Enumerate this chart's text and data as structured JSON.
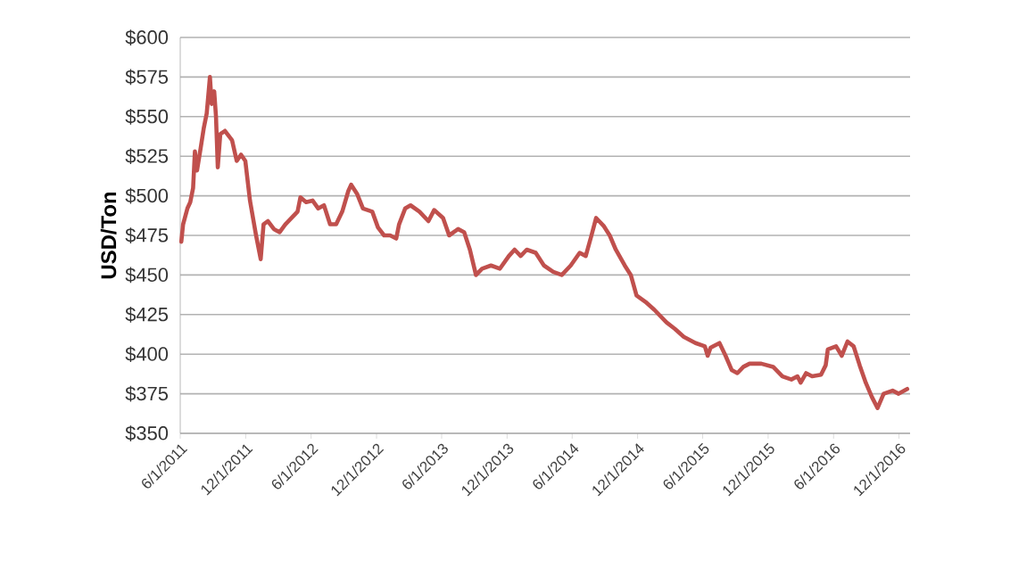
{
  "chart_data": {
    "type": "line",
    "ylabel": "USD/Ton",
    "x": [
      "2011-06-04",
      "2011-06-09",
      "2011-06-21",
      "2011-06-29",
      "2011-07-07",
      "2011-07-12",
      "2011-07-18",
      "2011-07-28",
      "2011-08-06",
      "2011-08-14",
      "2011-08-23",
      "2011-08-28",
      "2011-09-04",
      "2011-09-09",
      "2011-09-14",
      "2011-09-21",
      "2011-10-04",
      "2011-10-24",
      "2011-11-06",
      "2011-11-18",
      "2011-11-30",
      "2011-12-13",
      "2011-12-30",
      "2012-01-12",
      "2012-01-20",
      "2012-02-01",
      "2012-02-18",
      "2012-03-05",
      "2012-03-21",
      "2012-04-07",
      "2012-04-24",
      "2012-05-02",
      "2012-05-18",
      "2012-06-05",
      "2012-06-21",
      "2012-07-07",
      "2012-07-24",
      "2012-08-10",
      "2012-08-27",
      "2012-09-13",
      "2012-09-21",
      "2012-10-08",
      "2012-10-24",
      "2012-11-19",
      "2012-12-05",
      "2012-12-22",
      "2013-01-08",
      "2013-01-25",
      "2013-02-02",
      "2013-02-19",
      "2013-03-06",
      "2013-03-31",
      "2013-04-25",
      "2013-05-11",
      "2013-06-05",
      "2013-06-22",
      "2013-07-17",
      "2013-08-03",
      "2013-08-19",
      "2013-09-05",
      "2013-09-22",
      "2013-10-17",
      "2013-11-11",
      "2013-12-06",
      "2013-12-22",
      "2014-01-08",
      "2014-01-25",
      "2014-02-19",
      "2014-03-14",
      "2014-04-09",
      "2014-05-03",
      "2014-05-28",
      "2014-06-22",
      "2014-07-09",
      "2014-07-25",
      "2014-08-07",
      "2014-08-28",
      "2014-09-14",
      "2014-10-01",
      "2014-10-26",
      "2014-11-12",
      "2014-11-28",
      "2014-12-23",
      "2015-01-17",
      "2015-02-20",
      "2015-03-15",
      "2015-04-09",
      "2015-05-12",
      "2015-06-07",
      "2015-06-15",
      "2015-06-23",
      "2015-07-01",
      "2015-07-18",
      "2015-08-04",
      "2015-08-21",
      "2015-09-06",
      "2015-09-23",
      "2015-10-10",
      "2015-11-12",
      "2015-12-15",
      "2016-01-10",
      "2016-02-04",
      "2016-02-21",
      "2016-03-01",
      "2016-03-16",
      "2016-04-02",
      "2016-04-27",
      "2016-05-10",
      "2016-05-16",
      "2016-06-08",
      "2016-06-24",
      "2016-07-10",
      "2016-07-27",
      "2016-08-13",
      "2016-08-30",
      "2016-09-16",
      "2016-10-02",
      "2016-10-19",
      "2016-11-13",
      "2016-11-30",
      "2016-12-16",
      "2016-12-24"
    ],
    "series": [
      {
        "color": "#c0504d",
        "values": [
          471,
          482,
          492,
          496,
          505,
          528,
          516,
          530,
          543,
          552,
          575,
          558,
          566,
          550,
          518,
          539,
          541,
          535,
          522,
          526,
          522,
          497,
          475,
          460,
          482,
          484,
          479,
          477,
          482,
          486,
          490,
          499,
          496,
          497,
          492,
          494,
          482,
          482,
          490,
          503,
          507,
          501,
          492,
          490,
          480,
          475,
          475,
          473,
          482,
          492,
          494,
          490,
          484,
          491,
          486,
          475,
          479,
          477,
          466,
          450,
          454,
          456,
          454,
          462,
          466,
          462,
          466,
          464,
          456,
          452,
          450,
          456,
          464,
          462,
          475,
          486,
          481,
          475,
          466,
          456,
          450,
          437,
          433,
          428,
          420,
          416,
          411,
          407,
          405,
          399,
          404,
          405,
          407,
          399,
          390,
          388,
          392,
          394,
          394,
          392,
          386,
          384,
          386,
          382,
          388,
          386,
          387,
          393,
          403,
          405,
          399,
          408,
          405,
          393,
          382,
          373,
          366,
          375,
          377,
          375,
          377,
          378
        ]
      }
    ],
    "xlim": [
      "2011-06-01",
      "2017-01-01"
    ],
    "xticks": [
      {
        "value": "2011-06-01",
        "label": "6/1/2011"
      },
      {
        "value": "2011-12-01",
        "label": "12/1/2011"
      },
      {
        "value": "2012-06-01",
        "label": "6/1/2012"
      },
      {
        "value": "2012-12-01",
        "label": "12/1/2012"
      },
      {
        "value": "2013-06-01",
        "label": "6/1/2013"
      },
      {
        "value": "2013-12-01",
        "label": "12/1/2013"
      },
      {
        "value": "2014-06-01",
        "label": "6/1/2014"
      },
      {
        "value": "2014-12-01",
        "label": "12/1/2014"
      },
      {
        "value": "2015-06-01",
        "label": "6/1/2015"
      },
      {
        "value": "2015-12-01",
        "label": "12/1/2015"
      },
      {
        "value": "2016-06-01",
        "label": "6/1/2016"
      },
      {
        "value": "2016-12-01",
        "label": "12/1/2016"
      }
    ],
    "ylim": [
      350,
      600
    ],
    "yticks": [
      {
        "value": 350,
        "label": "$350"
      },
      {
        "value": 375,
        "label": "$375"
      },
      {
        "value": 400,
        "label": "$400"
      },
      {
        "value": 425,
        "label": "$425"
      },
      {
        "value": 450,
        "label": "$450"
      },
      {
        "value": 475,
        "label": "$475"
      },
      {
        "value": 500,
        "label": "$500"
      },
      {
        "value": 525,
        "label": "$525"
      },
      {
        "value": 550,
        "label": "$550"
      },
      {
        "value": 575,
        "label": "$575"
      },
      {
        "value": 600,
        "label": "$600"
      }
    ],
    "grid": "y",
    "marker": "none",
    "line_style": "solid"
  }
}
